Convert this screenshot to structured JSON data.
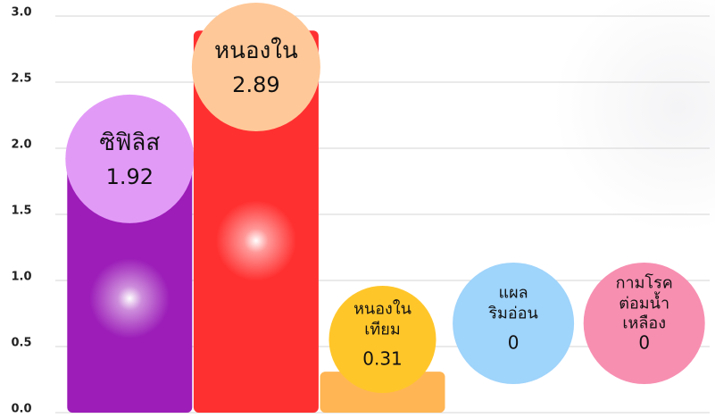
{
  "chart_data": {
    "type": "bar",
    "categories": [
      "ซิฟิลิส",
      "หนองใน",
      "หนองใน\nเทียม",
      "แผล\nริมอ่อน",
      "กามโรค\nต่อมน้ำเหลือง"
    ],
    "values": [
      1.92,
      2.89,
      0.31,
      0,
      0
    ],
    "colors": [
      "#9c1db8",
      "#ff3030",
      "#ffb554",
      "#8ec9f5",
      "#f58aa9"
    ],
    "bubble_colors": [
      "#e29af7",
      "#ffc898",
      "#ffc62a",
      "#9fd4fb",
      "#f78fb1"
    ],
    "ylim": [
      0,
      3
    ],
    "yticks": [
      {
        "value": 0,
        "label": "0.0"
      },
      0.5,
      {
        "value": 1,
        "label": "1.0"
      },
      1.5,
      {
        "value": 2,
        "label": "2.0"
      },
      2.5,
      {
        "value": 3,
        "label": "3.0"
      }
    ],
    "grid": true
  }
}
